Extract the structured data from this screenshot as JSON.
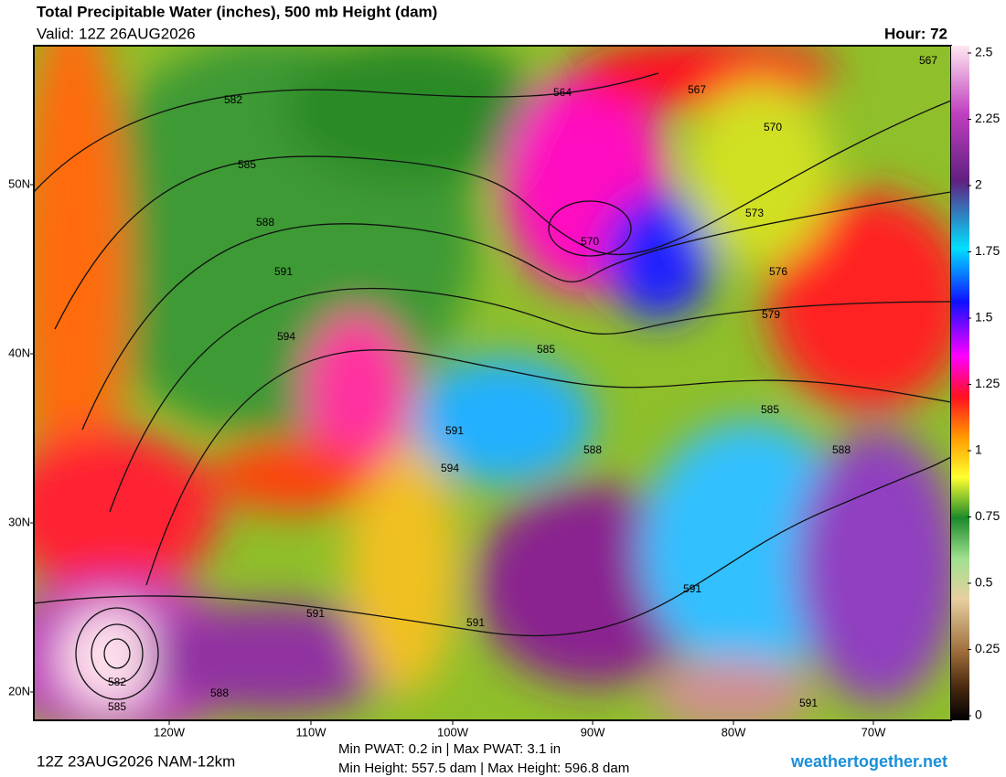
{
  "header": {
    "title": "Total Precipitable Water (inches), 500 mb Height (dam)",
    "valid": "Valid: 12Z 26AUG2026",
    "hour": "Hour: 72"
  },
  "map": {
    "lat_labels": [
      "50N",
      "40N",
      "30N",
      "20N"
    ],
    "lon_labels": [
      "120W",
      "110W",
      "100W",
      "90W",
      "80W",
      "70W"
    ],
    "contour_labels": [
      "582",
      "585",
      "588",
      "591",
      "594",
      "564",
      "567",
      "567",
      "570",
      "573",
      "576",
      "579",
      "585",
      "585",
      "588",
      "591",
      "594",
      "588",
      "570",
      "591",
      "591",
      "582",
      "585",
      "588",
      "591",
      "591"
    ]
  },
  "colorbar": {
    "lim": [
      0,
      2.5
    ],
    "ticks": [
      0,
      0.25,
      0.5,
      0.75,
      1,
      1.25,
      1.5,
      1.75,
      2,
      2.25,
      2.5
    ]
  },
  "footer": {
    "run": "12Z 23AUG2026 NAM-12km",
    "stats": [
      "Min PWAT:   0.2 in | Max PWAT:   3.1 in",
      "Min Height: 557.5 dam | Max Height: 596.8 dam"
    ],
    "site": "weathertogether.net"
  }
}
